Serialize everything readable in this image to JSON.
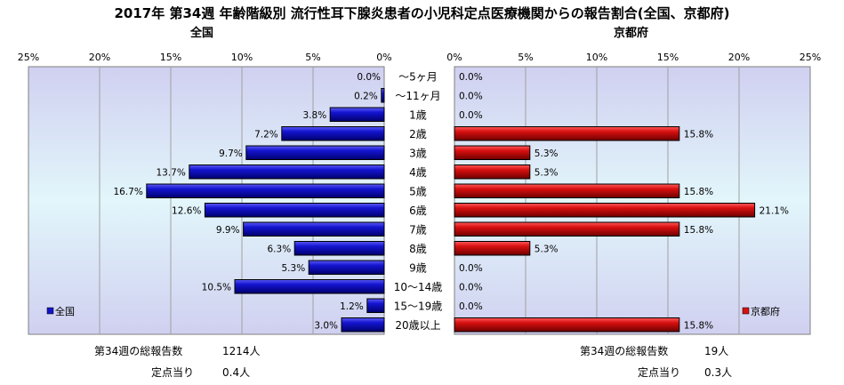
{
  "title": "2017年 第34週 年齢階級別 流行性耳下腺炎患者の小児科定点医療機関からの報告割合(全国、京都府)",
  "left_panel_title": "全国",
  "right_panel_title": "京都府",
  "footer": {
    "left": {
      "total_label": "第34週の総報告数",
      "total_value": "1214人",
      "per_site_label": "定点当り",
      "per_site_value": "0.4人"
    },
    "right": {
      "total_label": "第34週の総報告数",
      "total_value": "19人",
      "per_site_label": "定点当り",
      "per_site_value": "0.3人"
    }
  },
  "colors": {
    "national": "#1414c8",
    "kyoto": "#d81010",
    "plot_bg_top": "#d2d2f0",
    "plot_bg_mid": "#dff5fb"
  },
  "chart_data": [
    {
      "type": "bar",
      "orientation": "horizontal",
      "x_direction": "reversed",
      "panel": "left",
      "title": "全国",
      "categories": [
        "～5ヶ月",
        "～11ヶ月",
        "1歳",
        "2歳",
        "3歳",
        "4歳",
        "5歳",
        "6歳",
        "7歳",
        "8歳",
        "9歳",
        "10～14歳",
        "15～19歳",
        "20歳以上"
      ],
      "series": [
        {
          "name": "全国",
          "values": [
            0.0,
            0.2,
            3.8,
            7.2,
            9.7,
            13.7,
            16.7,
            12.6,
            9.9,
            6.3,
            5.3,
            10.5,
            1.2,
            3.0
          ]
        }
      ],
      "data_labels": [
        "0.0%",
        "0.2%",
        "3.8%",
        "7.2%",
        "9.7%",
        "13.7%",
        "16.7%",
        "12.6%",
        "9.9%",
        "6.3%",
        "5.3%",
        "10.5%",
        "1.2%",
        "3.0%"
      ],
      "xlim": [
        0,
        25
      ],
      "x_ticks": [
        "25%",
        "20%",
        "15%",
        "10%",
        "5%",
        "0%"
      ],
      "legend": "bottom-left",
      "grid": true
    },
    {
      "type": "bar",
      "orientation": "horizontal",
      "panel": "right",
      "title": "京都府",
      "categories": [
        "～5ヶ月",
        "～11ヶ月",
        "1歳",
        "2歳",
        "3歳",
        "4歳",
        "5歳",
        "6歳",
        "7歳",
        "8歳",
        "9歳",
        "10～14歳",
        "15～19歳",
        "20歳以上"
      ],
      "series": [
        {
          "name": "京都府",
          "values": [
            0.0,
            0.0,
            0.0,
            15.8,
            5.3,
            5.3,
            15.8,
            21.1,
            15.8,
            5.3,
            0.0,
            0.0,
            0.0,
            15.8
          ]
        }
      ],
      "data_labels": [
        "0.0%",
        "0.0%",
        "0.0%",
        "15.8%",
        "5.3%",
        "5.3%",
        "15.8%",
        "21.1%",
        "15.8%",
        "5.3%",
        "0.0%",
        "0.0%",
        "0.0%",
        "15.8%"
      ],
      "xlim": [
        0,
        25
      ],
      "x_ticks": [
        "0%",
        "5%",
        "10%",
        "15%",
        "20%",
        "25%"
      ],
      "legend": "bottom-right",
      "grid": true
    }
  ]
}
